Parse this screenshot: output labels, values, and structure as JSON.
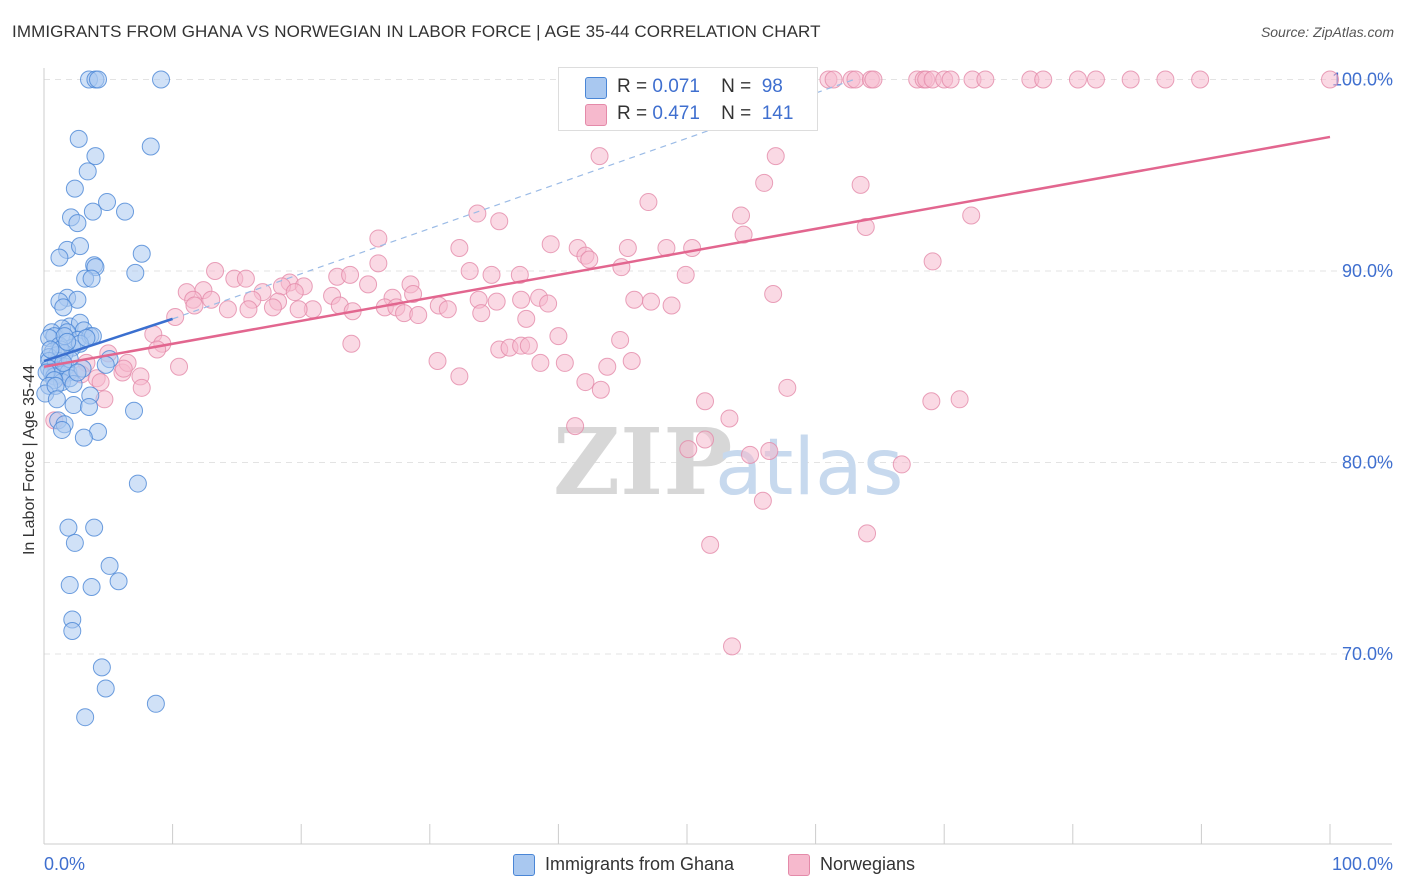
{
  "chart_data": {
    "type": "scatter",
    "title": "IMMIGRANTS FROM GHANA VS NORWEGIAN IN LABOR FORCE | AGE 35-44 CORRELATION CHART",
    "source": "Source: ZipAtlas.com",
    "xlabel": "",
    "ylabel": "In Labor Force | Age 35-44",
    "xlim": [
      0,
      100
    ],
    "ylim": [
      60,
      101.5
    ],
    "x_tick_labels": [
      "0.0%",
      "100.0%"
    ],
    "y_ticks": [
      70,
      80,
      90,
      100
    ],
    "y_tick_labels": [
      "70.0%",
      "80.0%",
      "90.0%",
      "100.0%"
    ],
    "watermark": "ZIPatlas",
    "legend": [
      {
        "name": "Immigrants from Ghana",
        "r_label": "R =",
        "r_value": "0.071",
        "n_label": "N =",
        "n_value": "98"
      },
      {
        "name": "Norwegians",
        "r_label": "R =",
        "r_value": "0.471",
        "n_label": "N =",
        "n_value": "141"
      }
    ],
    "colors": {
      "blue_fill": "#a9c8f0",
      "blue_stroke": "#4a86d6",
      "blue_line": "#3a6fcf",
      "pink_fill": "#f6b9cd",
      "pink_stroke": "#e48aa9",
      "pink_line": "#e2668f",
      "tick_label": "#3f6fcf",
      "grid": "#e3e3e3"
    },
    "series": [
      {
        "name": "Immigrants from Ghana",
        "trend": {
          "x": [
            0,
            10
          ],
          "y": [
            85.3,
            87.5
          ]
        },
        "trend_ext": {
          "x": [
            10,
            63
          ],
          "y": [
            87.5,
            100
          ]
        },
        "points": [
          [
            3.5,
            100
          ],
          [
            4.0,
            100
          ],
          [
            4.2,
            100
          ],
          [
            9.1,
            100
          ],
          [
            8.3,
            96.5
          ],
          [
            2.7,
            96.9
          ],
          [
            4.0,
            96.0
          ],
          [
            3.4,
            95.2
          ],
          [
            2.4,
            94.3
          ],
          [
            4.9,
            93.6
          ],
          [
            6.3,
            93.1
          ],
          [
            3.8,
            93.1
          ],
          [
            2.1,
            92.8
          ],
          [
            2.6,
            92.5
          ],
          [
            1.8,
            91.1
          ],
          [
            2.8,
            91.3
          ],
          [
            7.6,
            90.9
          ],
          [
            1.2,
            90.7
          ],
          [
            3.9,
            90.3
          ],
          [
            4.0,
            90.2
          ],
          [
            7.1,
            89.9
          ],
          [
            3.2,
            89.6
          ],
          [
            3.7,
            89.6
          ],
          [
            1.8,
            88.6
          ],
          [
            2.6,
            88.5
          ],
          [
            1.2,
            88.4
          ],
          [
            1.5,
            88.1
          ],
          [
            2.0,
            87.1
          ],
          [
            2.8,
            87.3
          ],
          [
            1.4,
            87.0
          ],
          [
            0.6,
            86.8
          ],
          [
            0.8,
            86.6
          ],
          [
            0.4,
            86.5
          ],
          [
            1.8,
            86.8
          ],
          [
            3.1,
            86.9
          ],
          [
            2.6,
            86.4
          ],
          [
            3.6,
            86.6
          ],
          [
            3.8,
            86.6
          ],
          [
            2.2,
            86.0
          ],
          [
            1.2,
            86.1
          ],
          [
            2.8,
            86.2
          ],
          [
            3.3,
            86.5
          ],
          [
            0.7,
            85.8
          ],
          [
            1.6,
            85.7
          ],
          [
            1.0,
            85.6
          ],
          [
            0.4,
            85.5
          ],
          [
            1.1,
            85.3
          ],
          [
            0.4,
            85.3
          ],
          [
            0.9,
            85.1
          ],
          [
            1.7,
            85.0
          ],
          [
            1.0,
            84.8
          ],
          [
            0.4,
            84.9
          ],
          [
            0.6,
            84.7
          ],
          [
            1.4,
            84.6
          ],
          [
            0.8,
            84.5
          ],
          [
            0.2,
            84.7
          ],
          [
            1.9,
            84.7
          ],
          [
            1.4,
            84.2
          ],
          [
            2.0,
            84.4
          ],
          [
            0.8,
            84.3
          ],
          [
            5.1,
            85.4
          ],
          [
            4.8,
            85.1
          ],
          [
            0.4,
            84.0
          ],
          [
            0.1,
            83.6
          ],
          [
            3.6,
            83.5
          ],
          [
            2.3,
            83.0
          ],
          [
            3.5,
            82.9
          ],
          [
            7.0,
            82.7
          ],
          [
            1.1,
            82.2
          ],
          [
            1.6,
            82.0
          ],
          [
            1.4,
            81.7
          ],
          [
            4.2,
            81.6
          ],
          [
            3.1,
            81.3
          ],
          [
            7.3,
            78.9
          ],
          [
            1.9,
            76.6
          ],
          [
            3.9,
            76.6
          ],
          [
            2.4,
            75.8
          ],
          [
            5.1,
            74.6
          ],
          [
            5.8,
            73.8
          ],
          [
            2.0,
            73.6
          ],
          [
            3.7,
            73.5
          ],
          [
            2.2,
            71.8
          ],
          [
            2.2,
            71.2
          ],
          [
            4.5,
            69.3
          ],
          [
            4.8,
            68.2
          ],
          [
            8.7,
            67.4
          ],
          [
            3.2,
            66.7
          ],
          [
            2.0,
            85.4
          ],
          [
            1.3,
            85.9
          ],
          [
            0.9,
            84.0
          ],
          [
            1.6,
            86.6
          ],
          [
            2.3,
            84.1
          ],
          [
            0.5,
            85.9
          ],
          [
            1.5,
            85.2
          ],
          [
            1.0,
            83.3
          ],
          [
            3.0,
            84.9
          ],
          [
            2.6,
            84.7
          ],
          [
            1.8,
            86.3
          ]
        ]
      },
      {
        "name": "Norwegians",
        "trend": {
          "x": [
            0,
            100
          ],
          "y": [
            85.0,
            97.0
          ]
        },
        "points": [
          [
            61.0,
            100
          ],
          [
            61.4,
            100
          ],
          [
            62.8,
            100
          ],
          [
            63.1,
            100
          ],
          [
            64.3,
            100
          ],
          [
            64.5,
            100
          ],
          [
            67.9,
            100
          ],
          [
            68.4,
            100
          ],
          [
            68.6,
            100
          ],
          [
            69.1,
            100
          ],
          [
            70.0,
            100
          ],
          [
            70.5,
            100
          ],
          [
            72.2,
            100
          ],
          [
            73.2,
            100
          ],
          [
            76.7,
            100
          ],
          [
            77.7,
            100
          ],
          [
            80.4,
            100
          ],
          [
            81.8,
            100
          ],
          [
            84.5,
            100
          ],
          [
            87.2,
            100
          ],
          [
            89.9,
            100
          ],
          [
            100.0,
            100
          ],
          [
            56.2,
            97.9
          ],
          [
            56.8,
            98.3
          ],
          [
            59.0,
            99.3
          ],
          [
            43.2,
            96.0
          ],
          [
            56.9,
            96.0
          ],
          [
            56.0,
            94.6
          ],
          [
            63.5,
            94.5
          ],
          [
            47.0,
            93.6
          ],
          [
            54.2,
            92.9
          ],
          [
            72.1,
            92.9
          ],
          [
            33.7,
            93.0
          ],
          [
            35.4,
            92.6
          ],
          [
            63.9,
            92.3
          ],
          [
            54.4,
            91.9
          ],
          [
            26.0,
            91.7
          ],
          [
            32.3,
            91.2
          ],
          [
            39.4,
            91.4
          ],
          [
            41.5,
            91.2
          ],
          [
            45.4,
            91.2
          ],
          [
            48.4,
            91.2
          ],
          [
            50.4,
            91.2
          ],
          [
            42.1,
            90.8
          ],
          [
            42.4,
            90.6
          ],
          [
            44.9,
            90.2
          ],
          [
            69.1,
            90.5
          ],
          [
            26.0,
            90.4
          ],
          [
            33.1,
            90.0
          ],
          [
            34.8,
            89.8
          ],
          [
            37.0,
            89.8
          ],
          [
            49.9,
            89.8
          ],
          [
            13.3,
            90.0
          ],
          [
            14.8,
            89.6
          ],
          [
            15.7,
            89.6
          ],
          [
            19.1,
            89.4
          ],
          [
            22.8,
            89.7
          ],
          [
            23.8,
            89.8
          ],
          [
            18.5,
            89.2
          ],
          [
            12.4,
            89.0
          ],
          [
            20.2,
            89.2
          ],
          [
            25.2,
            89.3
          ],
          [
            28.5,
            89.3
          ],
          [
            11.1,
            88.9
          ],
          [
            17.0,
            88.9
          ],
          [
            18.2,
            88.4
          ],
          [
            19.5,
            88.9
          ],
          [
            11.6,
            88.5
          ],
          [
            13.0,
            88.5
          ],
          [
            16.2,
            88.5
          ],
          [
            22.4,
            88.7
          ],
          [
            27.1,
            88.6
          ],
          [
            28.7,
            88.8
          ],
          [
            33.8,
            88.5
          ],
          [
            35.2,
            88.4
          ],
          [
            38.5,
            88.6
          ],
          [
            47.2,
            88.4
          ],
          [
            56.7,
            88.8
          ],
          [
            11.7,
            88.2
          ],
          [
            14.3,
            88.0
          ],
          [
            17.8,
            88.1
          ],
          [
            20.9,
            88.0
          ],
          [
            23.0,
            88.2
          ],
          [
            26.5,
            88.1
          ],
          [
            27.4,
            88.1
          ],
          [
            30.7,
            88.2
          ],
          [
            31.4,
            88.0
          ],
          [
            37.1,
            88.5
          ],
          [
            39.2,
            88.3
          ],
          [
            45.9,
            88.5
          ],
          [
            48.8,
            88.2
          ],
          [
            10.2,
            87.6
          ],
          [
            15.9,
            88.0
          ],
          [
            19.8,
            88.0
          ],
          [
            24.0,
            87.9
          ],
          [
            28.0,
            87.8
          ],
          [
            34.0,
            87.8
          ],
          [
            29.1,
            87.7
          ],
          [
            37.5,
            87.5
          ],
          [
            8.5,
            86.7
          ],
          [
            9.2,
            86.2
          ],
          [
            23.9,
            86.2
          ],
          [
            35.4,
            85.9
          ],
          [
            36.2,
            86.0
          ],
          [
            37.1,
            86.1
          ],
          [
            37.7,
            86.1
          ],
          [
            40.0,
            86.6
          ],
          [
            44.8,
            86.4
          ],
          [
            10.5,
            85.0
          ],
          [
            8.8,
            85.9
          ],
          [
            3.3,
            85.2
          ],
          [
            5.0,
            85.7
          ],
          [
            6.1,
            84.7
          ],
          [
            6.5,
            85.2
          ],
          [
            7.5,
            84.5
          ],
          [
            2.9,
            84.6
          ],
          [
            4.1,
            84.4
          ],
          [
            1.4,
            84.5
          ],
          [
            6.2,
            84.9
          ],
          [
            4.4,
            84.2
          ],
          [
            4.7,
            83.3
          ],
          [
            7.6,
            83.9
          ],
          [
            30.6,
            85.3
          ],
          [
            38.6,
            85.2
          ],
          [
            40.5,
            85.2
          ],
          [
            43.8,
            85.0
          ],
          [
            45.7,
            85.3
          ],
          [
            32.3,
            84.5
          ],
          [
            42.1,
            84.2
          ],
          [
            43.3,
            83.8
          ],
          [
            51.4,
            83.2
          ],
          [
            57.8,
            83.9
          ],
          [
            69.0,
            83.2
          ],
          [
            71.2,
            83.3
          ],
          [
            53.3,
            82.3
          ],
          [
            41.3,
            81.9
          ],
          [
            51.4,
            81.2
          ],
          [
            0.8,
            82.2
          ],
          [
            56.4,
            80.6
          ],
          [
            50.1,
            80.7
          ],
          [
            54.9,
            80.4
          ],
          [
            66.7,
            79.9
          ],
          [
            55.9,
            78.0
          ],
          [
            51.8,
            75.7
          ],
          [
            64.0,
            76.3
          ],
          [
            53.5,
            70.4
          ]
        ]
      }
    ]
  }
}
